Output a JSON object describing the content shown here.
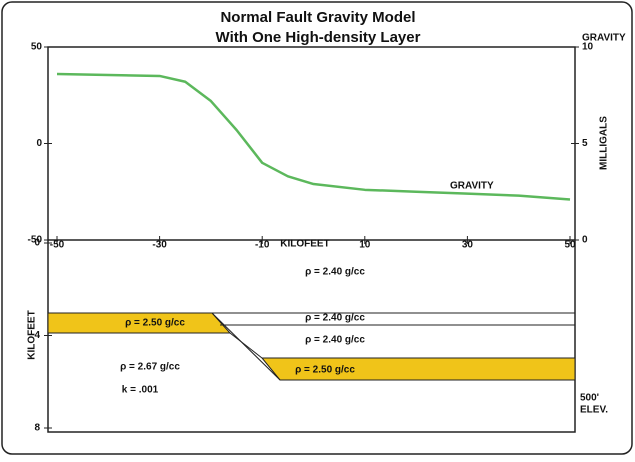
{
  "chart_data": {
    "type": "line",
    "title": "Normal Fault Gravity Model",
    "subtitle": "With One High-density Layer",
    "xlabel": "KILOFEET",
    "x": [
      -50,
      -30,
      -25,
      -20,
      -15,
      -10,
      -5,
      0,
      10,
      20,
      30,
      40,
      50
    ],
    "xlim": [
      -50,
      50
    ],
    "xticks": [
      -50,
      -30,
      -10,
      10,
      30,
      50
    ],
    "ylim": [
      -50,
      50
    ],
    "yticks": [
      -50,
      0,
      50
    ],
    "y2title": "GRAVITY",
    "y2label": "MILLIGALS",
    "y2lim": [
      0,
      10
    ],
    "y2ticks": [
      0,
      5,
      10
    ],
    "series": [
      {
        "name": "GRAVITY",
        "color": "#5cb85c",
        "values": [
          36,
          35,
          32,
          22,
          7,
          -10,
          -17,
          -21,
          -24,
          -25,
          -26,
          -27,
          -29
        ]
      }
    ]
  },
  "section": {
    "ylabel": "KILOFEET",
    "ylim": [
      0,
      8
    ],
    "yticks": [
      0,
      4,
      8
    ],
    "labels": [
      "ρ = 2.40 g/cc",
      "ρ = 2.50 g/cc",
      "ρ = 2.40 g/cc",
      "ρ = 2.40 g/cc",
      "ρ = 2.50 g/cc",
      "ρ = 2.67 g/cc",
      "k = .001"
    ],
    "elevation": [
      "500'",
      "ELEV."
    ]
  }
}
